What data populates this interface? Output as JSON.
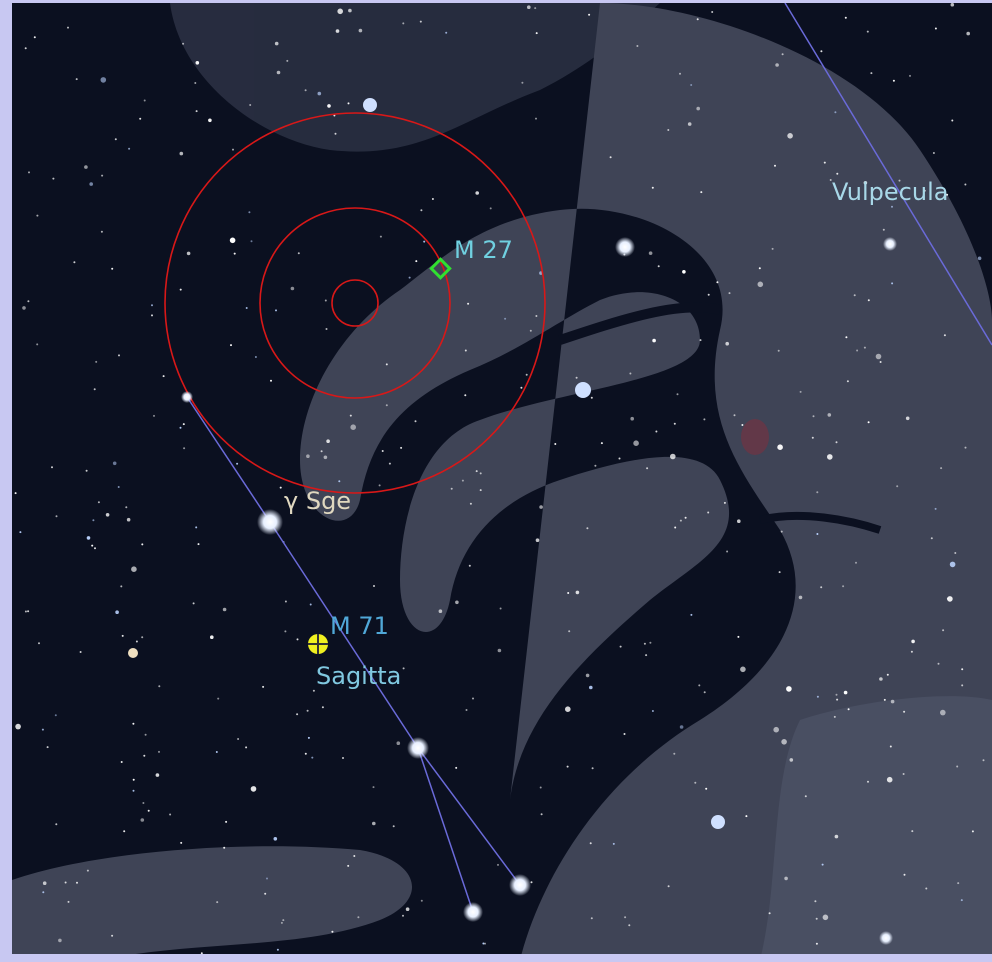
{
  "constellations": [
    {
      "name": "Vulpecula"
    },
    {
      "name": "Sagitta"
    }
  ],
  "deep_sky_objects": [
    {
      "name": "M 27"
    },
    {
      "name": "M 71"
    }
  ],
  "stars": [
    {
      "name": "γ Sge"
    }
  ]
}
